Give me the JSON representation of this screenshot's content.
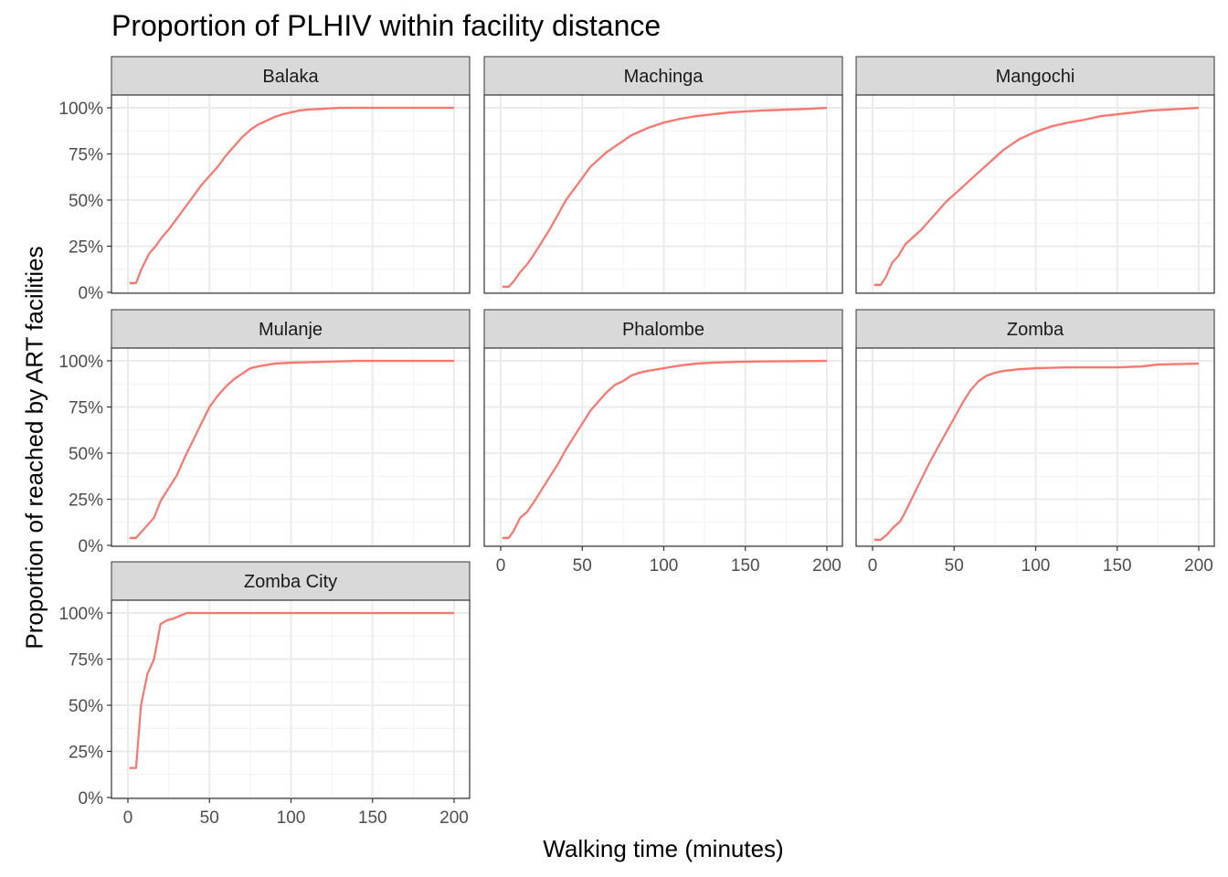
{
  "chart_data": {
    "type": "line",
    "title": "Proportion of PLHIV within facility distance",
    "xlabel": "Walking time (minutes)",
    "ylabel": "Proportion of reached by ART facilities",
    "xlim": [
      0,
      200
    ],
    "ylim": [
      0,
      1
    ],
    "x_ticks": [
      0,
      50,
      100,
      150,
      200
    ],
    "y_ticks": [
      0,
      0.25,
      0.5,
      0.75,
      1.0
    ],
    "y_tick_labels": [
      "0%",
      "25%",
      "50%",
      "75%",
      "100%"
    ],
    "grid": true,
    "theme": "bw",
    "line_color": "#F8766D",
    "facets": [
      {
        "name": "Balaka",
        "points": [
          [
            1,
            0.05
          ],
          [
            5,
            0.05
          ],
          [
            8,
            0.12
          ],
          [
            13,
            0.21
          ],
          [
            17,
            0.25
          ],
          [
            21,
            0.3
          ],
          [
            25,
            0.34
          ],
          [
            30,
            0.4
          ],
          [
            35,
            0.46
          ],
          [
            40,
            0.52
          ],
          [
            45,
            0.58
          ],
          [
            50,
            0.63
          ],
          [
            55,
            0.68
          ],
          [
            60,
            0.74
          ],
          [
            65,
            0.79
          ],
          [
            70,
            0.84
          ],
          [
            75,
            0.88
          ],
          [
            80,
            0.91
          ],
          [
            85,
            0.93
          ],
          [
            90,
            0.95
          ],
          [
            95,
            0.965
          ],
          [
            100,
            0.975
          ],
          [
            105,
            0.985
          ],
          [
            110,
            0.99
          ],
          [
            120,
            0.995
          ],
          [
            130,
            1.0
          ],
          [
            200,
            1.0
          ]
        ]
      },
      {
        "name": "Machinga",
        "points": [
          [
            1,
            0.03
          ],
          [
            5,
            0.03
          ],
          [
            8,
            0.06
          ],
          [
            12,
            0.11
          ],
          [
            16,
            0.15
          ],
          [
            20,
            0.2
          ],
          [
            25,
            0.27
          ],
          [
            30,
            0.34
          ],
          [
            35,
            0.42
          ],
          [
            40,
            0.5
          ],
          [
            45,
            0.56
          ],
          [
            50,
            0.62
          ],
          [
            55,
            0.68
          ],
          [
            60,
            0.72
          ],
          [
            65,
            0.76
          ],
          [
            70,
            0.79
          ],
          [
            75,
            0.82
          ],
          [
            80,
            0.85
          ],
          [
            85,
            0.87
          ],
          [
            90,
            0.89
          ],
          [
            95,
            0.905
          ],
          [
            100,
            0.92
          ],
          [
            110,
            0.94
          ],
          [
            120,
            0.955
          ],
          [
            130,
            0.965
          ],
          [
            140,
            0.975
          ],
          [
            150,
            0.98
          ],
          [
            160,
            0.985
          ],
          [
            175,
            0.99
          ],
          [
            190,
            0.995
          ],
          [
            200,
            1.0
          ]
        ]
      },
      {
        "name": "Mangochi",
        "points": [
          [
            1,
            0.04
          ],
          [
            5,
            0.04
          ],
          [
            8,
            0.08
          ],
          [
            12,
            0.16
          ],
          [
            16,
            0.2
          ],
          [
            20,
            0.26
          ],
          [
            25,
            0.3
          ],
          [
            30,
            0.34
          ],
          [
            35,
            0.39
          ],
          [
            40,
            0.44
          ],
          [
            45,
            0.49
          ],
          [
            50,
            0.53
          ],
          [
            55,
            0.57
          ],
          [
            60,
            0.61
          ],
          [
            65,
            0.65
          ],
          [
            70,
            0.69
          ],
          [
            75,
            0.73
          ],
          [
            80,
            0.77
          ],
          [
            85,
            0.8
          ],
          [
            90,
            0.83
          ],
          [
            95,
            0.85
          ],
          [
            100,
            0.87
          ],
          [
            110,
            0.9
          ],
          [
            120,
            0.92
          ],
          [
            130,
            0.935
          ],
          [
            140,
            0.955
          ],
          [
            150,
            0.965
          ],
          [
            160,
            0.975
          ],
          [
            170,
            0.985
          ],
          [
            180,
            0.99
          ],
          [
            190,
            0.995
          ],
          [
            200,
            1.0
          ]
        ]
      },
      {
        "name": "Mulanje",
        "points": [
          [
            1,
            0.04
          ],
          [
            5,
            0.04
          ],
          [
            10,
            0.09
          ],
          [
            16,
            0.15
          ],
          [
            20,
            0.24
          ],
          [
            25,
            0.31
          ],
          [
            30,
            0.38
          ],
          [
            35,
            0.48
          ],
          [
            40,
            0.57
          ],
          [
            45,
            0.66
          ],
          [
            50,
            0.75
          ],
          [
            55,
            0.81
          ],
          [
            60,
            0.86
          ],
          [
            65,
            0.9
          ],
          [
            70,
            0.93
          ],
          [
            75,
            0.96
          ],
          [
            80,
            0.97
          ],
          [
            90,
            0.985
          ],
          [
            100,
            0.99
          ],
          [
            120,
            0.995
          ],
          [
            140,
            1.0
          ],
          [
            200,
            1.0
          ]
        ]
      },
      {
        "name": "Phalombe",
        "points": [
          [
            1,
            0.04
          ],
          [
            5,
            0.04
          ],
          [
            8,
            0.08
          ],
          [
            12,
            0.15
          ],
          [
            16,
            0.18
          ],
          [
            20,
            0.23
          ],
          [
            25,
            0.3
          ],
          [
            30,
            0.37
          ],
          [
            35,
            0.44
          ],
          [
            40,
            0.52
          ],
          [
            45,
            0.59
          ],
          [
            50,
            0.66
          ],
          [
            55,
            0.73
          ],
          [
            60,
            0.78
          ],
          [
            65,
            0.83
          ],
          [
            70,
            0.87
          ],
          [
            75,
            0.89
          ],
          [
            80,
            0.92
          ],
          [
            85,
            0.935
          ],
          [
            90,
            0.945
          ],
          [
            100,
            0.96
          ],
          [
            110,
            0.975
          ],
          [
            120,
            0.985
          ],
          [
            130,
            0.99
          ],
          [
            145,
            0.995
          ],
          [
            160,
            0.997
          ],
          [
            200,
            1.0
          ]
        ]
      },
      {
        "name": "Zomba",
        "points": [
          [
            1,
            0.03
          ],
          [
            5,
            0.03
          ],
          [
            9,
            0.06
          ],
          [
            13,
            0.1
          ],
          [
            17,
            0.13
          ],
          [
            20,
            0.18
          ],
          [
            25,
            0.27
          ],
          [
            30,
            0.36
          ],
          [
            35,
            0.45
          ],
          [
            40,
            0.53
          ],
          [
            45,
            0.61
          ],
          [
            50,
            0.69
          ],
          [
            55,
            0.77
          ],
          [
            60,
            0.84
          ],
          [
            65,
            0.89
          ],
          [
            70,
            0.92
          ],
          [
            75,
            0.935
          ],
          [
            80,
            0.945
          ],
          [
            90,
            0.955
          ],
          [
            100,
            0.96
          ],
          [
            120,
            0.965
          ],
          [
            150,
            0.965
          ],
          [
            165,
            0.97
          ],
          [
            175,
            0.98
          ],
          [
            200,
            0.985
          ]
        ]
      },
      {
        "name": "Zomba City",
        "points": [
          [
            1,
            0.16
          ],
          [
            5,
            0.16
          ],
          [
            8,
            0.5
          ],
          [
            12,
            0.67
          ],
          [
            16,
            0.75
          ],
          [
            20,
            0.94
          ],
          [
            24,
            0.96
          ],
          [
            28,
            0.97
          ],
          [
            32,
            0.985
          ],
          [
            36,
            1.0
          ],
          [
            200,
            1.0
          ]
        ]
      }
    ]
  }
}
